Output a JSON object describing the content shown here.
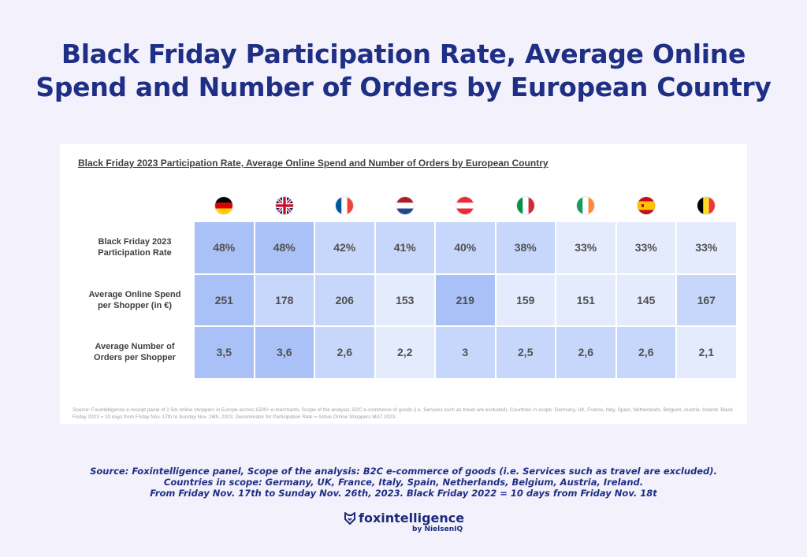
{
  "title_lines": [
    "Black Friday Participation Rate, Average Online",
    "Spend and Number of Orders by European Country"
  ],
  "chart_data": {
    "type": "table",
    "title": "Black Friday 2023 Participation Rate, Average Online Spend and Number of Orders by European Country",
    "columns": [
      "Germany",
      "UK",
      "France",
      "Netherlands",
      "Austria",
      "Italy",
      "Ireland",
      "Spain",
      "Belgium"
    ],
    "rows": [
      {
        "label_lines": [
          "Black Friday 2023",
          "Participation Rate"
        ],
        "cells": [
          "48%",
          "48%",
          "42%",
          "41%",
          "40%",
          "38%",
          "33%",
          "33%",
          "33%"
        ],
        "values": [
          48,
          48,
          42,
          41,
          40,
          38,
          33,
          33,
          33
        ]
      },
      {
        "label_lines": [
          "Average Online Spend",
          "per Shopper (in €)"
        ],
        "cells": [
          "251",
          "178",
          "206",
          "153",
          "219",
          "159",
          "151",
          "145",
          "167"
        ],
        "values": [
          251,
          178,
          206,
          153,
          219,
          159,
          151,
          145,
          167
        ]
      },
      {
        "label_lines": [
          "Average Number of",
          "Orders per Shopper"
        ],
        "cells": [
          "3,5",
          "3,6",
          "2,6",
          "2,2",
          "3",
          "2,5",
          "2,6",
          "2,6",
          "2,1"
        ],
        "values": [
          3.5,
          3.6,
          2.6,
          2.2,
          3,
          2.5,
          2.6,
          2.6,
          2.1
        ]
      }
    ],
    "note": "Source: Foxintelligence e-receipt panel of 2.5m online shoppers in Europe across 1500+ e-merchants. Scope of the analysis: B2C e-commerce of goods (i.e. Services such as travel are excluded). Countries in scope: Germany, UK, France, Italy, Spain, Netherlands, Belgium, Austria, Ireland. Black Friday 2023 = 10 days from Friday Nov. 17th to Sunday Nov. 26th, 2023. Denominator for Participation Rate = Active Online Shoppers MAT 2023."
  },
  "colors": {
    "title": "#1f2f85",
    "cell_dark": "#a9c1f6",
    "cell_mid": "#c7d7fb",
    "cell_light": "#e4ebfd"
  },
  "source_lines": [
    "Source: Foxintelligence panel, Scope of the analysis: B2C e-commerce of goods (i.e. Services such as travel are excluded).",
    "Countries in scope: Germany, UK, France, Italy, Spain, Netherlands, Belgium, Austria, Ireland.",
    "From Friday Nov. 17th to Sunday Nov. 26th, 2023. Black Friday 2022 = 10 days from Friday Nov. 18t"
  ],
  "logo": {
    "name": "foxintelligence",
    "sub": "by NielsenIQ",
    "icon": "fox-head-icon"
  }
}
